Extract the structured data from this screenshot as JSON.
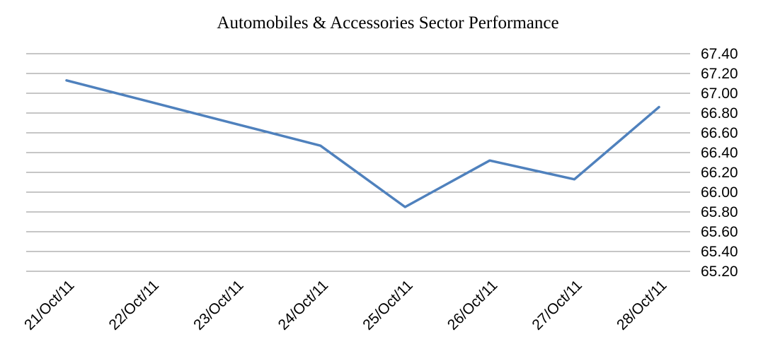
{
  "chart_data": {
    "type": "line",
    "title": "Automobiles & Accessories Sector Performance",
    "xlabel": "",
    "ylabel": "",
    "categories": [
      "21/Oct/11",
      "22/Oct/11",
      "23/Oct/11",
      "24/Oct/11",
      "25/Oct/11",
      "26/Oct/11",
      "27/Oct/11",
      "28/Oct/11"
    ],
    "series": [
      {
        "values": [
          67.13,
          66.91,
          66.69,
          66.47,
          65.85,
          66.32,
          66.13,
          66.86
        ],
        "color": "#4f81bd"
      }
    ],
    "ylim": [
      65.2,
      67.4
    ],
    "y_ticks": [
      "65.20",
      "65.40",
      "65.60",
      "65.80",
      "66.00",
      "66.20",
      "66.40",
      "66.60",
      "66.80",
      "67.00",
      "67.20",
      "67.40"
    ],
    "y_axis_side": "right",
    "grid": true,
    "legend": "none"
  }
}
